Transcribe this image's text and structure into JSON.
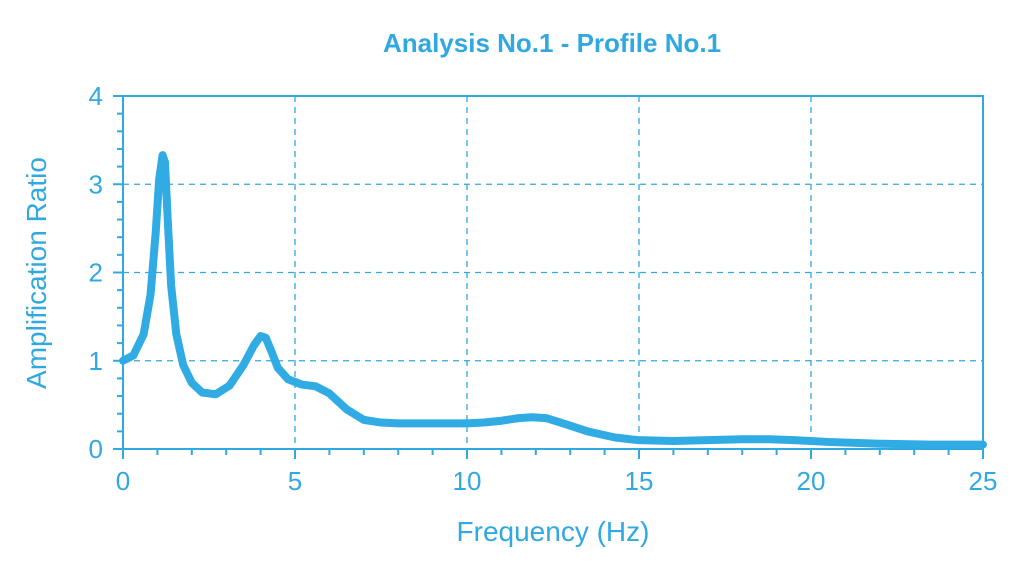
{
  "chart_data": {
    "type": "line",
    "title": "Analysis No.1 - Profile No.1",
    "xlabel": "Frequency (Hz)",
    "ylabel": "Amplification Ratio",
    "xlim": [
      0,
      25
    ],
    "ylim": [
      0,
      4
    ],
    "xticks": [
      0,
      5,
      10,
      15,
      20,
      25
    ],
    "yticks": [
      0,
      1,
      2,
      3,
      4
    ],
    "x_minor_step": 1,
    "y_minor_step": 0.2,
    "grid": true,
    "colors": {
      "accent": "#30a8e0",
      "line": "#31abe3"
    },
    "series": [
      {
        "x": [
          0,
          0.3,
          0.6,
          0.8,
          0.95,
          1.05,
          1.15,
          1.22,
          1.3,
          1.4,
          1.55,
          1.75,
          2.0,
          2.3,
          2.7,
          3.1,
          3.5,
          3.8,
          4.0,
          4.15,
          4.3,
          4.5,
          4.8,
          5.2,
          5.6,
          6.0,
          6.5,
          7.0,
          7.5,
          8.0,
          9.0,
          10.0,
          10.5,
          11.0,
          11.5,
          11.9,
          12.3,
          12.8,
          13.5,
          14.3,
          15.0,
          16.0,
          17.0,
          18.0,
          18.8,
          19.5,
          20.5,
          22.0,
          23.5,
          25.0
        ],
        "y": [
          1.0,
          1.06,
          1.3,
          1.75,
          2.45,
          3.05,
          3.33,
          3.25,
          2.6,
          1.85,
          1.3,
          0.95,
          0.75,
          0.64,
          0.62,
          0.72,
          0.95,
          1.17,
          1.28,
          1.26,
          1.12,
          0.92,
          0.79,
          0.73,
          0.71,
          0.63,
          0.45,
          0.33,
          0.3,
          0.29,
          0.29,
          0.29,
          0.3,
          0.32,
          0.35,
          0.36,
          0.35,
          0.29,
          0.2,
          0.13,
          0.1,
          0.09,
          0.1,
          0.11,
          0.11,
          0.1,
          0.08,
          0.06,
          0.05,
          0.05
        ]
      }
    ]
  }
}
